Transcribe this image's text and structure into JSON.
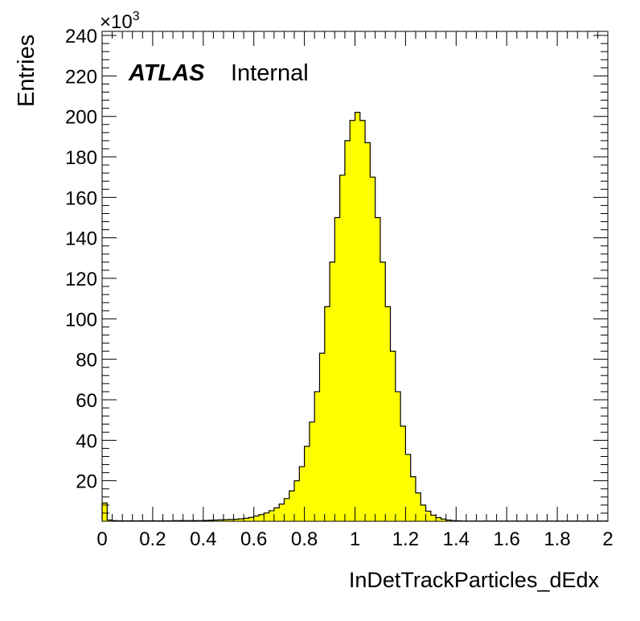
{
  "chart_data": {
    "type": "bar",
    "histogram": true,
    "xlabel": "InDetTrackParticles_dEdx",
    "ylabel": "Entries",
    "y_multiplier_label": "×10",
    "y_multiplier_exponent": "3",
    "xlim": [
      0,
      2
    ],
    "ylim": [
      0,
      242
    ],
    "x_tick_labels": [
      "0",
      "0.2",
      "0.4",
      "0.6",
      "0.8",
      "1",
      "1.2",
      "1.4",
      "1.6",
      "1.8",
      "2"
    ],
    "y_tick_labels": [
      "20",
      "40",
      "60",
      "80",
      "100",
      "120",
      "140",
      "160",
      "180",
      "200",
      "220",
      "240"
    ],
    "bin_width": 0.02,
    "bin_edges_start": 0,
    "fill_color": "#ffff00",
    "line_color": "#000000",
    "grid": false,
    "legend": "none",
    "values": [
      9,
      0.6,
      0.3,
      0.2,
      0.2,
      0.2,
      0.2,
      0.2,
      0.2,
      0.2,
      0.2,
      0.2,
      0.2,
      0.2,
      0.3,
      0.3,
      0.3,
      0.3,
      0.3,
      0.3,
      0.4,
      0.5,
      0.6,
      0.7,
      0.8,
      0.9,
      1.0,
      1.2,
      1.5,
      1.9,
      2.6,
      3.3,
      4.1,
      5.2,
      6.6,
      8.5,
      11.2,
      15,
      20,
      27,
      37,
      49,
      64,
      83,
      106,
      128,
      150,
      171,
      188,
      198,
      202,
      198,
      187,
      170,
      150,
      128,
      106,
      84,
      64,
      47,
      33,
      22,
      14,
      8,
      5,
      3,
      1.8,
      1.1,
      0.6,
      0.3,
      0.2,
      0.1,
      0.1,
      0.1,
      0.1,
      0.1,
      0.1,
      0.1,
      0.1,
      0.1,
      0.1,
      0.1,
      0.1,
      0.1,
      0.1,
      0.1,
      0.1,
      0.1,
      0.1,
      0.1,
      0.1,
      0.1,
      0.1,
      0.1,
      0.1,
      0.1,
      0.1,
      0.1,
      0.1,
      0.1
    ]
  },
  "labels": {
    "atlas": "ATLAS",
    "internal": "Internal"
  }
}
